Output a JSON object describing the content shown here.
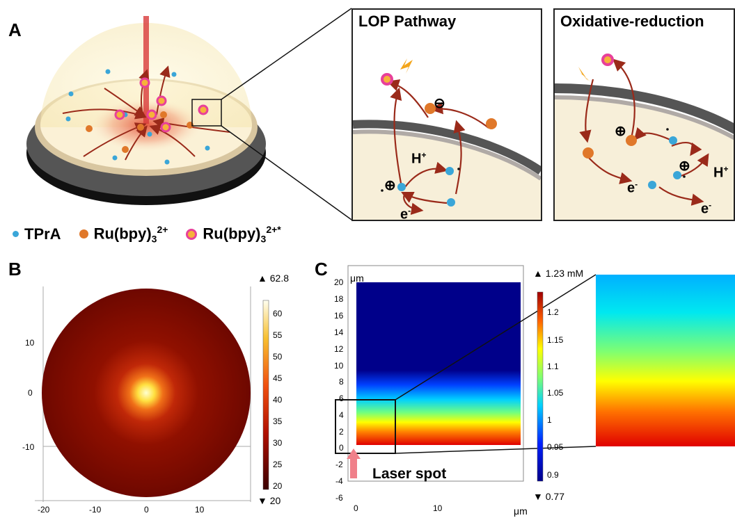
{
  "panels": {
    "a": {
      "letter": "A"
    },
    "b": {
      "letter": "B"
    },
    "c": {
      "letter": "C"
    }
  },
  "lop": {
    "title": "LOP Pathway",
    "h_plus": "H",
    "h_plus_sup": "+",
    "e_minus": "e",
    "e_minus_sup": "-",
    "minus_charge": "⊖",
    "plus_charge": "⊕"
  },
  "ox": {
    "title": "Oxidative-reduction",
    "e1": "e",
    "e1_sup": "-",
    "e2": "e",
    "e2_sup": "-",
    "h_plus": "H",
    "h_plus_sup": "+",
    "plus1": "⊕",
    "plus2": "⊕"
  },
  "legend": {
    "tpra": "TPrA",
    "ru_base": "Ru(bpy)",
    "ru_sub": "3",
    "ru_sup": "2+",
    "ru_star_base": "Ru(bpy)",
    "ru_star_sub": "3",
    "ru_star_sup": "2+*"
  },
  "plot_b": {
    "y_ticks": [
      "10",
      "0",
      "-10"
    ],
    "x_ticks": [
      "-20",
      "-10",
      "0",
      "10"
    ],
    "colorbar_max": "▲ 62.8",
    "colorbar_min": "▼ 20",
    "colorbar_ticks": [
      "60",
      "55",
      "50",
      "45",
      "40",
      "35",
      "30",
      "25",
      "20"
    ]
  },
  "plot_c": {
    "y_unit": "μm",
    "x_unit": "μm",
    "y_ticks": [
      "20",
      "18",
      "16",
      "14",
      "12",
      "10",
      "8",
      "6",
      "4",
      "2",
      "0",
      "-2",
      "-4",
      "-6"
    ],
    "x_ticks": [
      "0",
      "10"
    ],
    "colorbar_max": "▲ 1.23 mM",
    "colorbar_min": "▼ 0.77",
    "colorbar_ticks": [
      "1.2",
      "1.15",
      "1.1",
      "1.05",
      "1",
      "0.95",
      "0.9"
    ],
    "laser_label": "Laser spot"
  },
  "colors": {
    "tpra": "#3aa6d8",
    "ru": "#e0782a",
    "ru_star_ring": "#e8409a",
    "arrow": "#9a2a1a",
    "laser": "#f0808a"
  }
}
